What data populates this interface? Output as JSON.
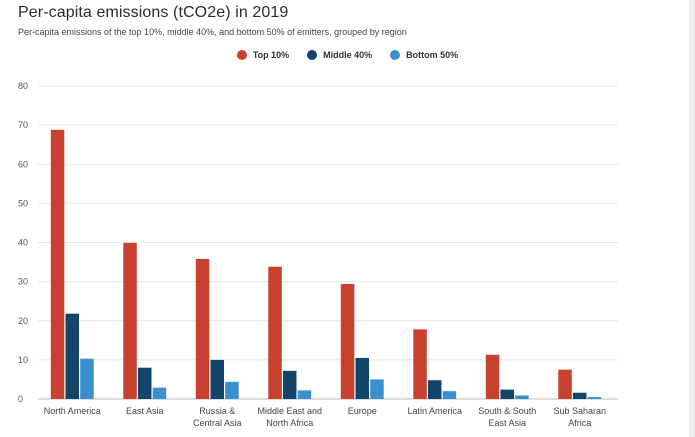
{
  "chart_data": {
    "type": "bar",
    "title": "Per-capita emissions (tCO2e) in 2019",
    "subtitle": "Per-capita emissions of the top 10%, middle 40%, and bottom 50% of emitters, grouped by region",
    "legend_placement": "top-center",
    "grid": true,
    "ylim": [
      0,
      80
    ],
    "yticks": [
      0,
      10,
      20,
      30,
      40,
      50,
      60,
      70,
      80
    ],
    "categories": [
      [
        "North America"
      ],
      [
        "East Asia"
      ],
      [
        "Russia &",
        "Central Asia"
      ],
      [
        "Middle East and",
        "North Africa"
      ],
      [
        "Europe"
      ],
      [
        "Latin America"
      ],
      [
        "South & South",
        "East Asia"
      ],
      [
        "Sub Saharan",
        "Africa"
      ]
    ],
    "series": [
      {
        "name": "Top 10%",
        "color": "#c8412e",
        "values": [
          68.8,
          39.9,
          35.8,
          33.8,
          29.4,
          17.8,
          11.3,
          7.5
        ]
      },
      {
        "name": "Middle 40%",
        "color": "#13456b",
        "values": [
          21.8,
          8.0,
          10.0,
          7.2,
          10.5,
          4.8,
          2.4,
          1.6
        ]
      },
      {
        "name": "Bottom 50%",
        "color": "#3a8fcd",
        "values": [
          10.3,
          2.9,
          4.4,
          2.2,
          5.0,
          2.0,
          0.9,
          0.5
        ]
      }
    ]
  }
}
